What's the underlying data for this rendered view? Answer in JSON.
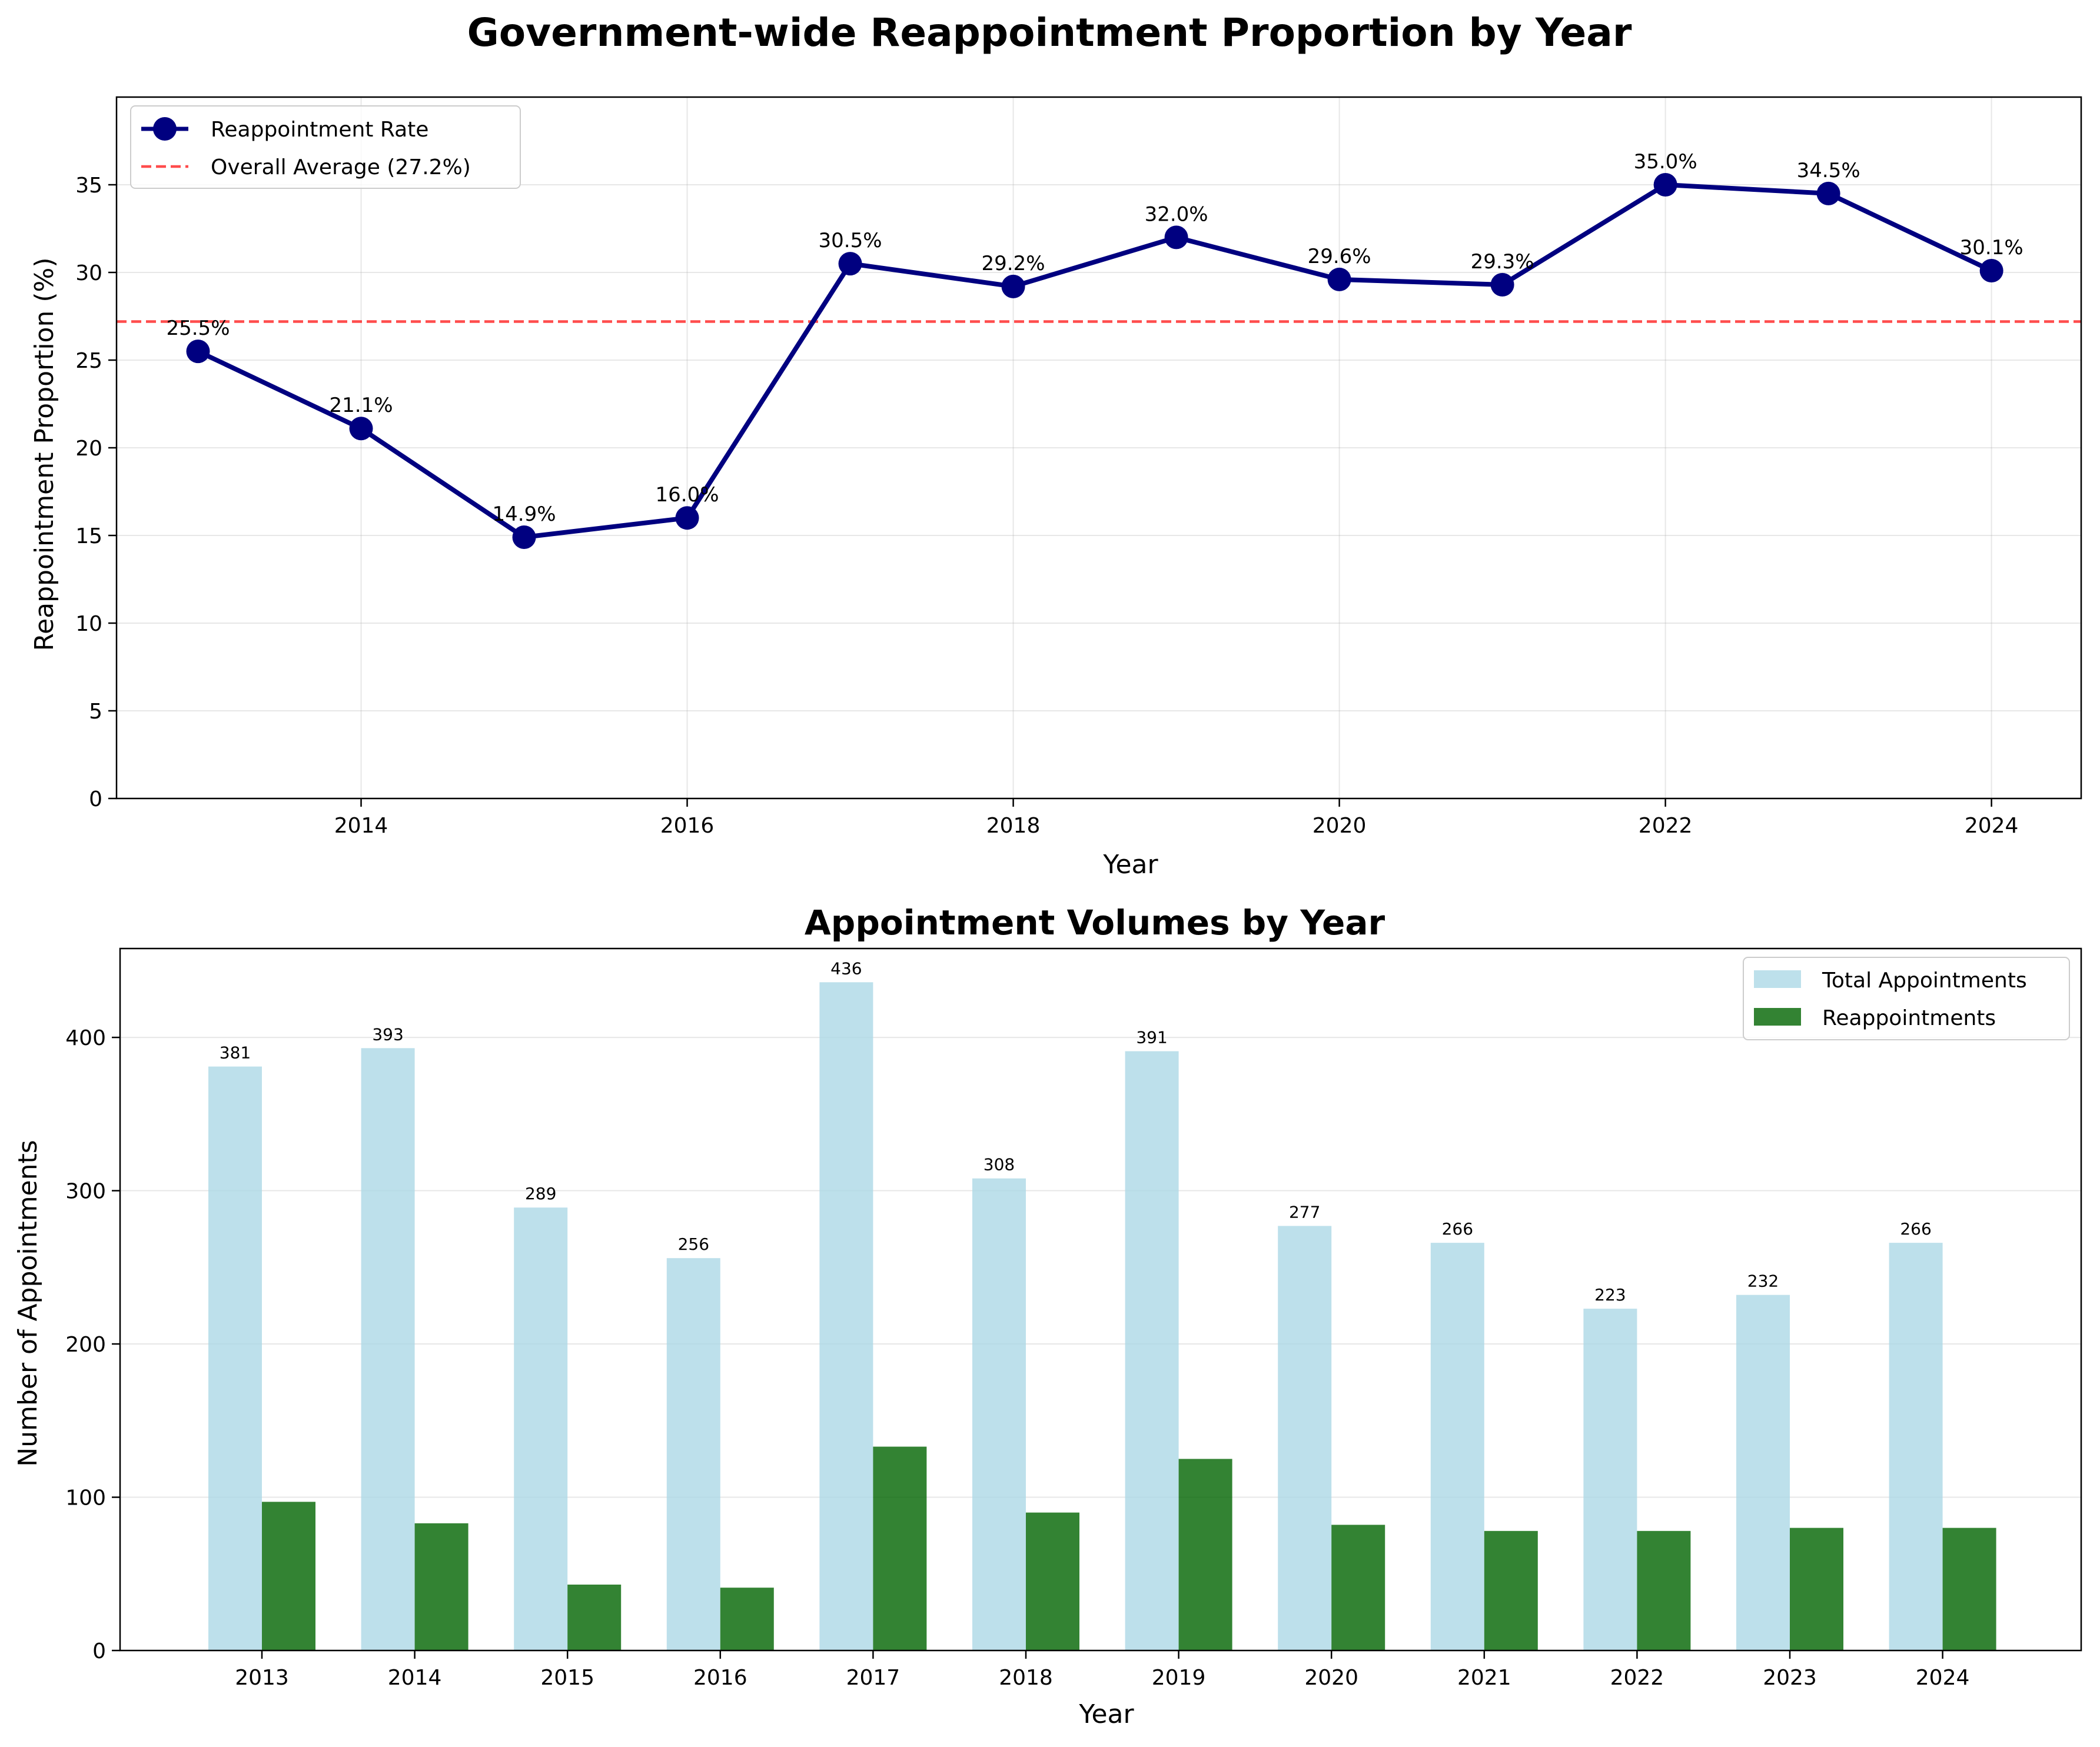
{
  "chart_data": [
    {
      "type": "line",
      "title": "Government-wide Reappointment Proportion by Year",
      "xlabel": "Year",
      "ylabel": "Reappointment Proportion (%)",
      "x": [
        2013,
        2014,
        2015,
        2016,
        2017,
        2018,
        2019,
        2020,
        2021,
        2022,
        2023,
        2024
      ],
      "series": [
        {
          "name": "Reappointment Rate",
          "values": [
            25.5,
            21.1,
            14.9,
            16.0,
            30.5,
            29.2,
            32.0,
            29.6,
            29.3,
            35.0,
            34.5,
            30.1
          ],
          "point_labels": [
            "25.5%",
            "21.1%",
            "14.9%",
            "16.0%",
            "30.5%",
            "29.2%",
            "32.0%",
            "29.6%",
            "29.3%",
            "35.0%",
            "34.5%",
            "30.1%"
          ],
          "color": "#000080"
        }
      ],
      "reference_line": {
        "name": "Overall Average (27.2%)",
        "value": 27.2,
        "color": "#ff0000"
      },
      "xlim": [
        2012.5,
        2024.55
      ],
      "ylim": [
        0,
        40
      ],
      "xticks": [
        2014,
        2016,
        2018,
        2020,
        2022,
        2024
      ],
      "yticks": [
        0,
        5,
        10,
        15,
        20,
        25,
        30,
        35
      ],
      "grid": true,
      "legend_position": "upper-left"
    },
    {
      "type": "bar",
      "title": "Appointment Volumes by Year",
      "xlabel": "Year",
      "ylabel": "Number of Appointments",
      "categories": [
        "2013",
        "2014",
        "2015",
        "2016",
        "2017",
        "2018",
        "2019",
        "2020",
        "2021",
        "2022",
        "2023",
        "2024"
      ],
      "series": [
        {
          "name": "Total Appointments",
          "values": [
            381,
            393,
            289,
            256,
            436,
            308,
            391,
            277,
            266,
            223,
            232,
            266
          ],
          "color": "#add8e6"
        },
        {
          "name": "Reappointments",
          "values": [
            97,
            83,
            43,
            41,
            133,
            90,
            125,
            82,
            78,
            78,
            80,
            80
          ],
          "color": "#006400"
        }
      ],
      "ylim": [
        0,
        458
      ],
      "yticks": [
        0,
        100,
        200,
        300,
        400
      ],
      "grid": true,
      "legend_position": "upper-right"
    }
  ]
}
